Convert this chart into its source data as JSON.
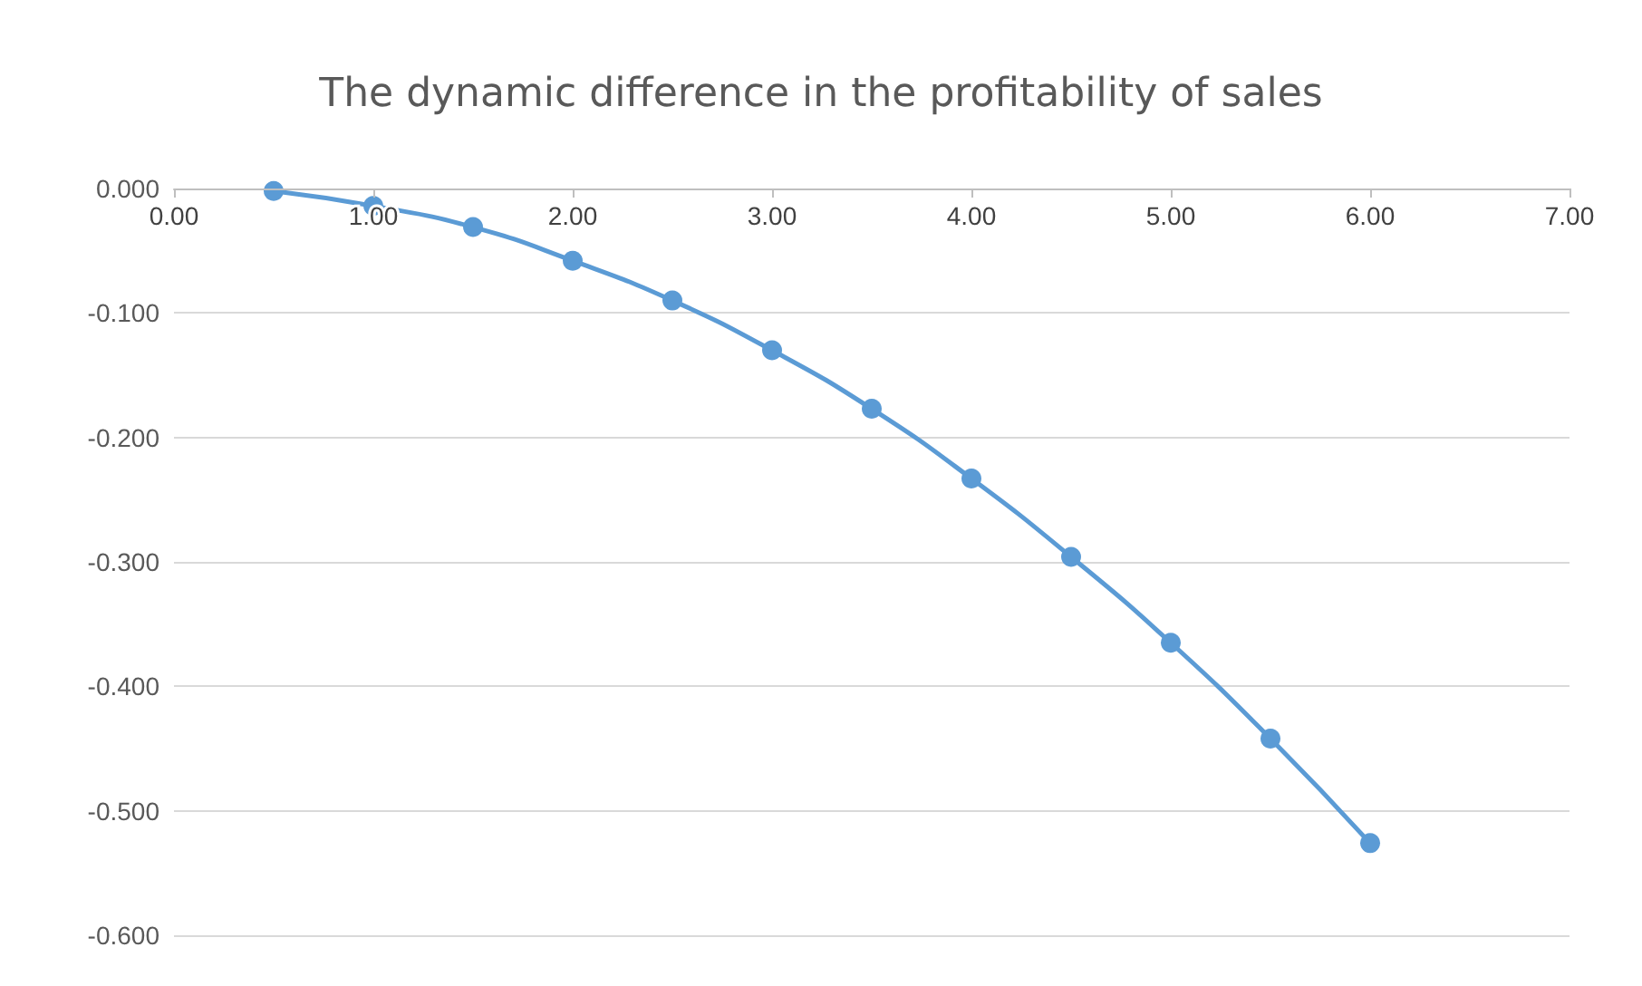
{
  "chart_data": {
    "type": "line",
    "title": "The dynamic difference in the profitability of sales",
    "series": [
      {
        "color": "#5b9bd5",
        "x": [
          0.5,
          1,
          1.5,
          2,
          2.5,
          3,
          3.5,
          4,
          4.5,
          5,
          5.5,
          6
        ],
        "values": [
          -0.002,
          -0.014,
          -0.031,
          -0.058,
          -0.09,
          -0.13,
          -0.177,
          -0.233,
          -0.296,
          -0.365,
          -0.442,
          -0.526
        ]
      }
    ],
    "xlim": [
      0,
      7
    ],
    "xticks": [
      {
        "value": 0,
        "label": "0.00"
      },
      {
        "value": 1,
        "label": "1.00"
      },
      {
        "value": 2,
        "label": "2.00"
      },
      {
        "value": 3,
        "label": "3.00"
      },
      {
        "value": 4,
        "label": "4.00"
      },
      {
        "value": 5,
        "label": "5.00"
      },
      {
        "value": 6,
        "label": "6.00"
      },
      {
        "value": 7,
        "label": "7.00"
      }
    ],
    "ylim": [
      -0.6,
      0
    ],
    "yticks": [
      {
        "value": 0,
        "label": "0.000"
      },
      {
        "value": -0.1,
        "label": "-0.100"
      },
      {
        "value": -0.2,
        "label": "-0.200"
      },
      {
        "value": -0.3,
        "label": "-0.300"
      },
      {
        "value": -0.4,
        "label": "-0.400"
      },
      {
        "value": -0.5,
        "label": "-0.500"
      },
      {
        "value": -0.6,
        "label": "-0.600"
      }
    ],
    "grid": "y",
    "marker": "circle",
    "line_style": "solid"
  }
}
